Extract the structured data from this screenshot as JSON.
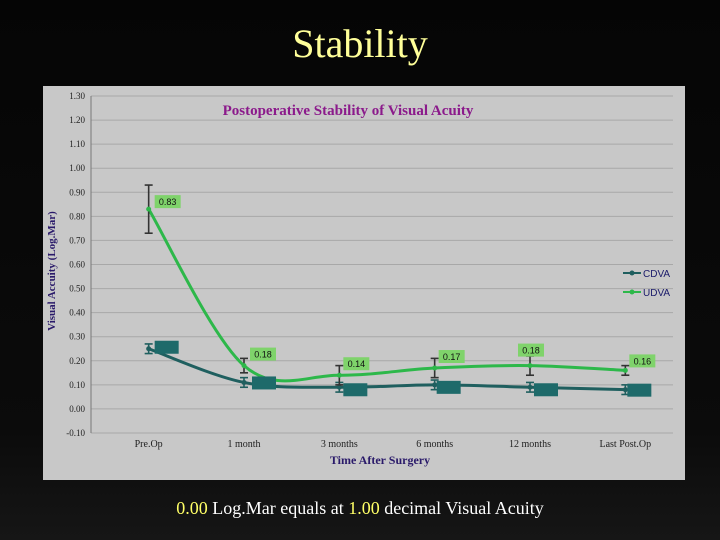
{
  "slide": {
    "title": "Stability",
    "footer": {
      "value1": "0.00",
      "mid": " Log.Mar equals at ",
      "value2": "1.00",
      "tail": " decimal Visual Acuity"
    }
  },
  "colors": {
    "cdva": "#1f5f5f",
    "udva": "#2db84a",
    "udva_label_bg": "#7fd36b",
    "cdva_label_bg": "#1e6a6a",
    "title": "#8b1a8b",
    "panel": "#c8c8c8"
  },
  "chart_data": {
    "type": "line",
    "title": "Postoperative Stability of Visual Acuity",
    "xlabel": "Time After Surgery",
    "ylabel": "Visual Accuity (Log.Mar)",
    "ylim": [
      -0.1,
      1.3
    ],
    "yticks": [
      "1.30",
      "1.20",
      "1.10",
      "1.00",
      "0.90",
      "0.80",
      "0.70",
      "0.60",
      "0.50",
      "0.40",
      "0.30",
      "0.20",
      "0.10",
      "0.00",
      "-0.10"
    ],
    "categories": [
      "Pre.Op",
      "1 month",
      "3 months",
      "6 months",
      "12 months",
      "Last Post.Op"
    ],
    "legend_position": "right",
    "grid": true,
    "series": [
      {
        "name": "CDVA",
        "values": [
          0.25,
          0.11,
          0.09,
          0.1,
          0.09,
          0.08
        ],
        "errors": [
          0.02,
          0.02,
          0.02,
          0.02,
          0.02,
          0.02
        ]
      },
      {
        "name": "UDVA",
        "values": [
          0.83,
          0.18,
          0.14,
          0.17,
          0.18,
          0.16
        ],
        "labels": [
          "0.83",
          "0.18",
          "0.14",
          "0.17",
          "0.18",
          "0.16"
        ],
        "errors": [
          0.1,
          0.03,
          0.04,
          0.04,
          0.04,
          0.02
        ]
      }
    ]
  }
}
